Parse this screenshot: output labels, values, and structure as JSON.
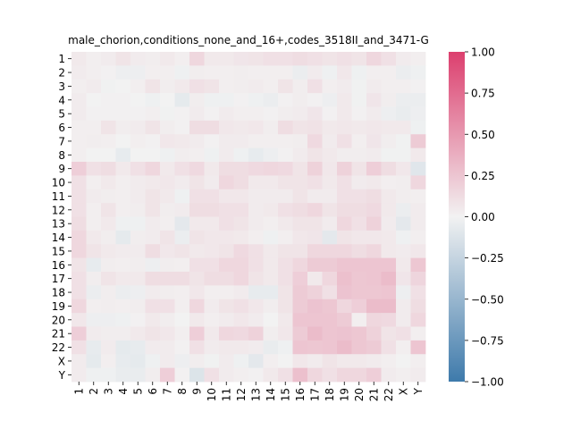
{
  "chart_data": {
    "type": "heatmap",
    "title": "male_chorion,conditions_none_and_16+,codes_3518II_and_3471-G",
    "x_categories": [
      "1",
      "2",
      "3",
      "4",
      "5",
      "6",
      "7",
      "8",
      "9",
      "10",
      "11",
      "12",
      "13",
      "14",
      "15",
      "16",
      "17",
      "18",
      "19",
      "20",
      "21",
      "22",
      "X",
      "Y"
    ],
    "y_categories": [
      "1",
      "2",
      "3",
      "4",
      "5",
      "6",
      "7",
      "8",
      "9",
      "10",
      "11",
      "12",
      "13",
      "14",
      "15",
      "16",
      "17",
      "18",
      "19",
      "20",
      "21",
      "22",
      "X",
      "Y"
    ],
    "colorbar": {
      "vmin": -1.0,
      "vmax": 1.0,
      "ticks": [
        1.0,
        0.75,
        0.5,
        0.25,
        0.0,
        -0.25,
        -0.5,
        -0.75,
        -1.0
      ],
      "tick_labels": [
        "1.00",
        "0.75",
        "0.50",
        "0.25",
        "0.00",
        "−0.25",
        "−0.50",
        "−0.75",
        "−1.00"
      ],
      "low_color": "#3e7aab",
      "mid_color": "#f2f2f2",
      "high_color": "#dc3f6e"
    },
    "grid": false,
    "values": [
      [
        0.05,
        0.02,
        0.04,
        0.08,
        0.04,
        0.03,
        0.05,
        0.02,
        0.15,
        0.05,
        0.05,
        0.07,
        0.08,
        0.1,
        0.1,
        0.12,
        0.1,
        0.08,
        0.1,
        0.08,
        0.15,
        0.1,
        0.04,
        0.02
      ],
      [
        0.04,
        0.02,
        0.01,
        -0.03,
        -0.03,
        0.02,
        0.02,
        -0.02,
        0.03,
        0.02,
        0.02,
        0.03,
        0.02,
        0.02,
        0.02,
        -0.04,
        0.04,
        -0.02,
        0.06,
        -0.02,
        0.02,
        0.02,
        -0.04,
        -0.02
      ],
      [
        0.02,
        0.04,
        -0.01,
        0.0,
        0.02,
        0.08,
        0.03,
        0.05,
        0.1,
        0.08,
        0.02,
        0.03,
        0.04,
        0.02,
        0.08,
        0.03,
        0.1,
        0.02,
        0.04,
        -0.01,
        0.04,
        0.02,
        0.02,
        0.01
      ],
      [
        0.04,
        0.0,
        0.01,
        0.01,
        0.0,
        -0.02,
        0.0,
        -0.07,
        0.03,
        -0.02,
        -0.02,
        0.01,
        -0.02,
        -0.04,
        0.01,
        0.03,
        0.01,
        -0.03,
        0.05,
        -0.01,
        0.07,
        0.03,
        -0.04,
        -0.04
      ],
      [
        0.04,
        0.01,
        0.01,
        0.01,
        0.01,
        0.02,
        -0.01,
        0.01,
        0.04,
        0.01,
        0.04,
        0.02,
        0.02,
        0.01,
        0.03,
        0.04,
        0.07,
        0.01,
        0.05,
        0.01,
        0.04,
        -0.03,
        -0.05,
        -0.03
      ],
      [
        0.02,
        0.02,
        0.08,
        0.03,
        0.04,
        0.08,
        0.03,
        0.01,
        0.12,
        0.12,
        0.06,
        0.05,
        0.06,
        0.03,
        0.12,
        0.08,
        0.09,
        0.05,
        0.06,
        0.05,
        0.06,
        0.05,
        0.05,
        -0.02
      ],
      [
        0.02,
        0.03,
        0.02,
        0.0,
        0.02,
        0.01,
        0.06,
        0.05,
        0.04,
        0.01,
        0.04,
        0.04,
        0.02,
        0.02,
        0.02,
        0.03,
        0.14,
        0.04,
        0.1,
        0.02,
        0.07,
        0.03,
        -0.01,
        0.22
      ],
      [
        0.02,
        0.0,
        0.0,
        -0.06,
        0.0,
        0.0,
        -0.02,
        0.03,
        0.02,
        -0.02,
        0.04,
        -0.02,
        -0.06,
        -0.03,
        0.01,
        0.04,
        0.08,
        0.05,
        0.03,
        0.03,
        0.04,
        -0.01,
        -0.01,
        0.05
      ],
      [
        0.2,
        0.1,
        0.12,
        0.05,
        0.1,
        0.15,
        0.05,
        0.1,
        0.14,
        0.05,
        0.12,
        0.12,
        0.14,
        0.15,
        0.14,
        0.08,
        0.18,
        0.06,
        0.18,
        0.08,
        0.2,
        0.12,
        0.06,
        -0.1
      ],
      [
        0.1,
        0.02,
        0.05,
        0.02,
        0.04,
        0.05,
        0.06,
        0.04,
        0.08,
        0.04,
        0.15,
        0.12,
        0.05,
        0.05,
        0.08,
        0.08,
        0.1,
        0.05,
        0.1,
        0.04,
        0.05,
        0.02,
        0.03,
        0.15
      ],
      [
        0.1,
        0.04,
        0.03,
        0.02,
        0.04,
        0.08,
        0.05,
        -0.02,
        0.1,
        0.1,
        0.06,
        0.06,
        0.04,
        0.04,
        0.04,
        0.08,
        0.04,
        0.04,
        0.1,
        0.1,
        0.12,
        0.05,
        0.03,
        0.02
      ],
      [
        0.1,
        0.02,
        0.08,
        0.02,
        0.03,
        0.08,
        0.03,
        0.04,
        0.12,
        0.12,
        0.1,
        0.1,
        0.04,
        0.05,
        0.1,
        0.12,
        0.15,
        0.08,
        0.12,
        0.12,
        0.14,
        0.05,
        -0.04,
        0.04
      ],
      [
        0.12,
        0.02,
        0.05,
        -0.02,
        -0.02,
        0.04,
        0.02,
        -0.08,
        0.05,
        0.05,
        0.1,
        0.08,
        0.04,
        0.02,
        0.05,
        0.08,
        0.08,
        0.04,
        0.15,
        0.1,
        0.18,
        0.04,
        -0.08,
        0.04
      ],
      [
        0.15,
        0.05,
        0.03,
        -0.07,
        0.03,
        0.04,
        0.08,
        -0.04,
        0.08,
        0.06,
        0.06,
        0.05,
        0.02,
        -0.02,
        0.02,
        0.06,
        0.07,
        -0.08,
        0.08,
        0.06,
        0.06,
        0.05,
        -0.02,
        0.02
      ],
      [
        0.15,
        0.08,
        0.05,
        0.04,
        0.04,
        0.12,
        0.06,
        0.08,
        0.05,
        0.06,
        0.08,
        0.14,
        0.1,
        0.05,
        0.08,
        0.08,
        0.15,
        0.15,
        0.15,
        0.12,
        0.15,
        0.05,
        0.04,
        0.06
      ],
      [
        0.08,
        -0.06,
        0.03,
        0.02,
        0.03,
        -0.03,
        0.03,
        0.02,
        0.1,
        0.1,
        0.15,
        0.15,
        0.1,
        0.05,
        0.1,
        0.15,
        0.22,
        0.22,
        0.25,
        0.25,
        0.25,
        0.25,
        0.05,
        0.24
      ],
      [
        0.1,
        0.03,
        0.08,
        0.05,
        0.05,
        0.12,
        0.12,
        0.12,
        0.08,
        0.12,
        0.12,
        0.15,
        0.08,
        0.05,
        0.1,
        0.2,
        0.05,
        0.15,
        0.28,
        0.24,
        0.25,
        0.3,
        0.07,
        0.16
      ],
      [
        0.1,
        -0.04,
        0.03,
        -0.04,
        -0.03,
        0.04,
        0.03,
        0.02,
        0.06,
        0.02,
        0.02,
        0.04,
        -0.06,
        -0.06,
        0.08,
        0.22,
        0.18,
        0.1,
        0.26,
        0.24,
        0.24,
        0.25,
        -0.03,
        0.1
      ],
      [
        0.15,
        0.02,
        0.03,
        0.02,
        0.03,
        0.1,
        0.1,
        0.02,
        0.15,
        0.04,
        0.08,
        0.1,
        0.06,
        0.03,
        0.08,
        0.22,
        0.26,
        0.24,
        0.15,
        0.2,
        0.3,
        0.3,
        0.04,
        0.12
      ],
      [
        0.06,
        -0.03,
        -0.03,
        -0.02,
        0.01,
        0.05,
        0.03,
        0.0,
        0.05,
        0.02,
        0.04,
        0.06,
        0.04,
        0.0,
        0.05,
        0.25,
        0.25,
        0.25,
        0.22,
        0.02,
        0.15,
        0.14,
        0.04,
        0.15
      ],
      [
        0.2,
        0.04,
        0.03,
        0.03,
        0.05,
        0.08,
        0.06,
        0.02,
        0.2,
        0.05,
        0.15,
        0.14,
        0.18,
        0.03,
        0.06,
        0.22,
        0.3,
        0.25,
        0.26,
        0.24,
        0.18,
        0.08,
        0.1,
        0.02
      ],
      [
        0.1,
        -0.06,
        0.04,
        -0.07,
        -0.06,
        0.04,
        0.04,
        0.01,
        0.1,
        0.04,
        0.05,
        0.05,
        0.04,
        -0.05,
        -0.02,
        0.25,
        0.24,
        0.25,
        0.3,
        0.24,
        0.22,
        0.1,
        0.02,
        0.25
      ],
      [
        0.04,
        -0.07,
        0.02,
        -0.06,
        -0.07,
        -0.02,
        0.04,
        -0.03,
        0.03,
        -0.01,
        0.04,
        -0.02,
        -0.08,
        0.02,
        0.0,
        0.06,
        0.04,
        0.08,
        0.05,
        0.05,
        0.04,
        0.02,
        0.0,
        0.02
      ],
      [
        0.04,
        -0.02,
        -0.02,
        -0.05,
        -0.05,
        0.03,
        0.2,
        0.01,
        -0.12,
        0.1,
        0.04,
        0.02,
        0.01,
        0.05,
        0.1,
        0.28,
        0.15,
        0.1,
        0.15,
        0.15,
        0.2,
        0.04,
        0.02,
        0.04
      ]
    ]
  }
}
